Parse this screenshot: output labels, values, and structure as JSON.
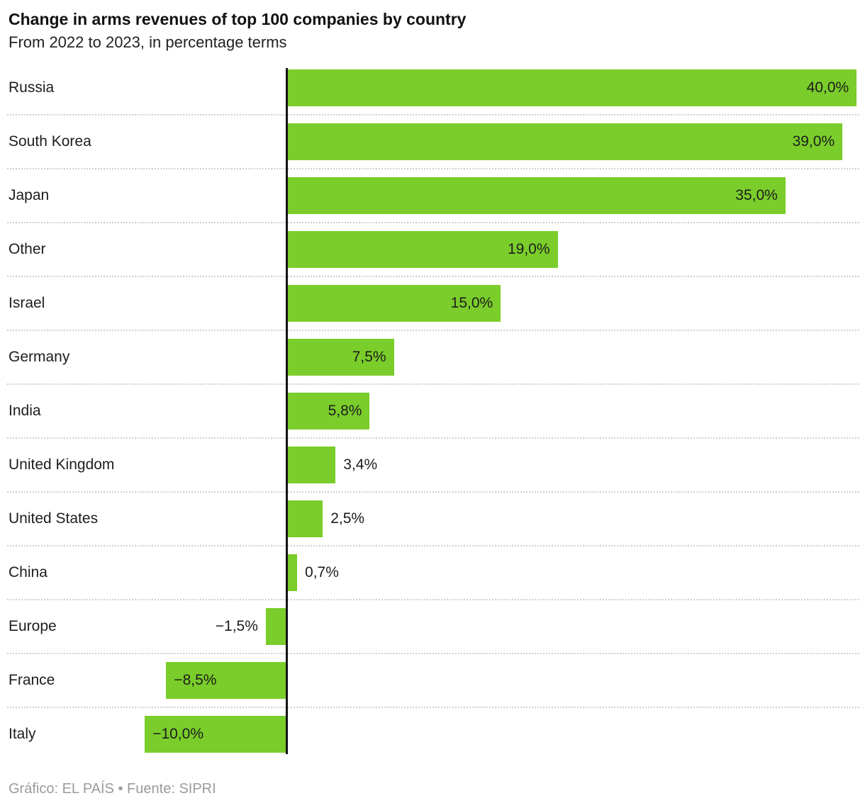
{
  "header": {
    "title": "Change in arms revenues of top 100 companies by country",
    "subtitle": "From 2022 to 2023, in percentage terms"
  },
  "chart_data": {
    "type": "bar",
    "orientation": "horizontal",
    "title": "Change in arms revenues of top 100 companies by country",
    "subtitle": "From 2022 to 2023, in percentage terms",
    "xlabel": "",
    "ylabel": "",
    "xlim": [
      -10,
      40
    ],
    "grid": "dotted row separators, zero axis line",
    "legend": "none",
    "unit": "%",
    "decimal_separator": ",",
    "bar_color": "#7acd2a",
    "categories": [
      "Russia",
      "South Korea",
      "Japan",
      "Other",
      "Israel",
      "Germany",
      "India",
      "United Kingdom",
      "United States",
      "China",
      "Europe",
      "France",
      "Italy"
    ],
    "values": [
      40.0,
      39.0,
      35.0,
      19.0,
      15.0,
      7.5,
      5.8,
      3.4,
      2.5,
      0.7,
      -1.5,
      -8.5,
      -10.0
    ],
    "value_labels": [
      "40,0%",
      "39,0%",
      "35,0%",
      "19,0%",
      "15,0%",
      "7,5%",
      "5,8%",
      "3,4%",
      "2,5%",
      "0,7%",
      "−1,5%",
      "−8,5%",
      "−10,0%"
    ]
  },
  "footer": {
    "credit": "Gráfico: EL PAÍS • Fuente: SIPRI"
  }
}
